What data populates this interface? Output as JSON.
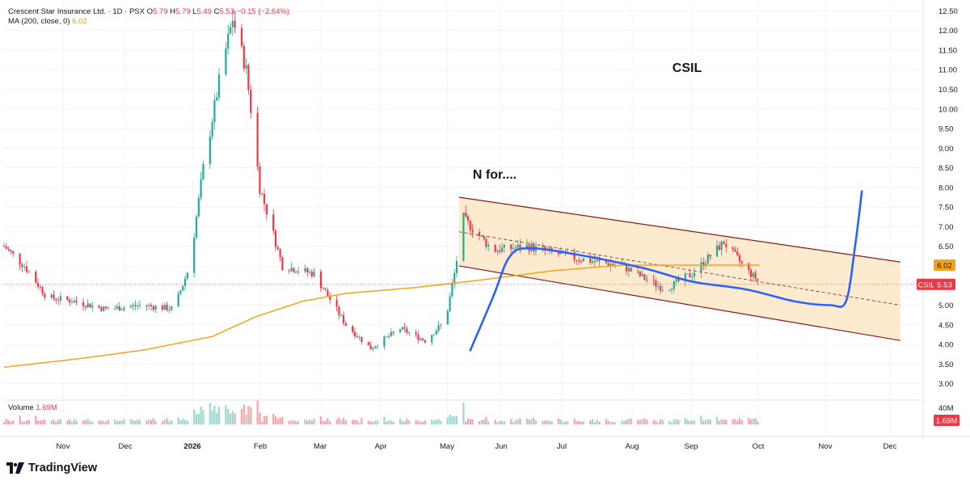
{
  "legend": {
    "name": "Crescent Star Insurance Ltd.",
    "interval_exchange": "· 1D · PSX",
    "open_label": "O",
    "open": "5.79",
    "high_label": "H",
    "high": "5.79",
    "low_label": "L",
    "low": "5.49",
    "close_label": "C",
    "close": "5.53",
    "change": "−0.15 (−2.64%)",
    "ma_label": "MA (200, close, 0)",
    "ma_value": "6.02"
  },
  "volume": {
    "label": "Volume",
    "value": "1.69M",
    "axis_label": "40M",
    "badge": "1.69M"
  },
  "price_badges": {
    "ma": "6.02",
    "symbol": "CSIL",
    "last": "5.53"
  },
  "annotations": {
    "ticker": "CSIL",
    "note": "N for...."
  },
  "brand": {
    "name": "TradingView"
  },
  "colors": {
    "up": "#22ab94",
    "down": "#f23645",
    "ma": "#f7a21b",
    "drawing": "#2962ff",
    "channel_fill": "#fde7c8",
    "channel_line": "#8b1a1a"
  },
  "chart_data": {
    "type": "candlestick",
    "symbol": "CSIL",
    "exchange": "PSX",
    "interval": "1D",
    "y_axis": {
      "range": [
        2.9,
        12.65
      ],
      "ticks": [
        "12.50",
        "12.00",
        "11.50",
        "11.00",
        "10.50",
        "10.00",
        "9.50",
        "9.00",
        "8.50",
        "8.00",
        "7.50",
        "7.00",
        "6.50",
        "6.00",
        "5.50",
        "5.00",
        "4.50",
        "4.00",
        "3.50",
        "3.00"
      ]
    },
    "x_axis": {
      "labels": [
        "Nov",
        "Dec",
        "2026",
        "Feb",
        "Mar",
        "Apr",
        "May",
        "Jun",
        "Jul",
        "Aug",
        "Sep",
        "Oct",
        "Nov",
        "Dec"
      ]
    },
    "price_anchors": [
      {
        "date": "Oct 1",
        "price": 6.5
      },
      {
        "date": "Oct 10",
        "price": 6.0
      },
      {
        "date": "Oct 20",
        "price": 5.2
      },
      {
        "date": "Nov 1",
        "price": 5.1
      },
      {
        "date": "Nov 15",
        "price": 4.9
      },
      {
        "date": "Dec 1",
        "price": 5.0
      },
      {
        "date": "Dec 15",
        "price": 4.9
      },
      {
        "date": "Dec 22",
        "price": 6.0
      },
      {
        "date": "Dec 28",
        "price": 8.5
      },
      {
        "date": "Jan 5",
        "price": 11.0
      },
      {
        "date": "Jan 10",
        "price": 12.3
      },
      {
        "date": "Jan 16",
        "price": 11.0
      },
      {
        "date": "Jan 22",
        "price": 8.0
      },
      {
        "date": "Feb 1",
        "price": 6.0
      },
      {
        "date": "Feb 15",
        "price": 5.8
      },
      {
        "date": "Mar 1",
        "price": 4.5
      },
      {
        "date": "Mar 12",
        "price": 3.9
      },
      {
        "date": "Mar 25",
        "price": 4.4
      },
      {
        "date": "Apr 5",
        "price": 4.1
      },
      {
        "date": "Apr 14",
        "price": 4.6
      },
      {
        "date": "Apr 18",
        "price": 5.8
      },
      {
        "date": "Apr 22",
        "price": 7.2
      },
      {
        "date": "May 5",
        "price": 6.4
      },
      {
        "date": "May 20",
        "price": 6.5
      },
      {
        "date": "Jun 10",
        "price": 6.2
      },
      {
        "date": "Jul 1",
        "price": 6.0
      },
      {
        "date": "Jul 20",
        "price": 5.4
      },
      {
        "date": "Aug 1",
        "price": 5.8
      },
      {
        "date": "Aug 15",
        "price": 6.6
      },
      {
        "date": "Aug 25",
        "price": 5.9
      },
      {
        "date": "Sep 1",
        "price": 5.53
      }
    ],
    "ma200_anchors": [
      {
        "date": "Oct 1",
        "price": 3.42
      },
      {
        "date": "Nov 1",
        "price": 3.62
      },
      {
        "date": "Dec 1",
        "price": 3.85
      },
      {
        "date": "Jan 1",
        "price": 4.2
      },
      {
        "date": "Jan 20",
        "price": 4.7
      },
      {
        "date": "Feb 10",
        "price": 5.1
      },
      {
        "date": "Mar 1",
        "price": 5.3
      },
      {
        "date": "Apr 1",
        "price": 5.45
      },
      {
        "date": "May 1",
        "price": 5.65
      },
      {
        "date": "Jun 1",
        "price": 5.88
      },
      {
        "date": "Jul 1",
        "price": 6.02
      },
      {
        "date": "Sep 1",
        "price": 6.02
      }
    ],
    "last_price": 5.53,
    "ma200_last": 6.02,
    "channel": {
      "upper": [
        {
          "date": "Apr 20",
          "price": 7.75
        },
        {
          "date": "Nov 1",
          "price": 6.1
        }
      ],
      "lower": [
        {
          "date": "Apr 20",
          "price": 6.0
        },
        {
          "date": "Nov 1",
          "price": 4.1
        }
      ],
      "mid": [
        {
          "date": "Apr 20",
          "price": 6.87
        },
        {
          "date": "Nov 1",
          "price": 5.0
        }
      ]
    },
    "projection_path": [
      {
        "date": "Apr 25",
        "price": 3.85
      },
      {
        "date": "May 5",
        "price": 5.2
      },
      {
        "date": "May 12",
        "price": 6.2
      },
      {
        "date": "May 20",
        "price": 6.45
      },
      {
        "date": "Jun 10",
        "price": 6.3
      },
      {
        "date": "Jul 10",
        "price": 5.95
      },
      {
        "date": "Aug 1",
        "price": 5.6
      },
      {
        "date": "Aug 25",
        "price": 5.4
      },
      {
        "date": "Sep 15",
        "price": 5.1
      },
      {
        "date": "Oct 1",
        "price": 5.0
      },
      {
        "date": "Oct 8",
        "price": 5.1
      },
      {
        "date": "Oct 12",
        "price": 6.5
      },
      {
        "date": "Oct 15",
        "price": 7.9
      }
    ]
  }
}
